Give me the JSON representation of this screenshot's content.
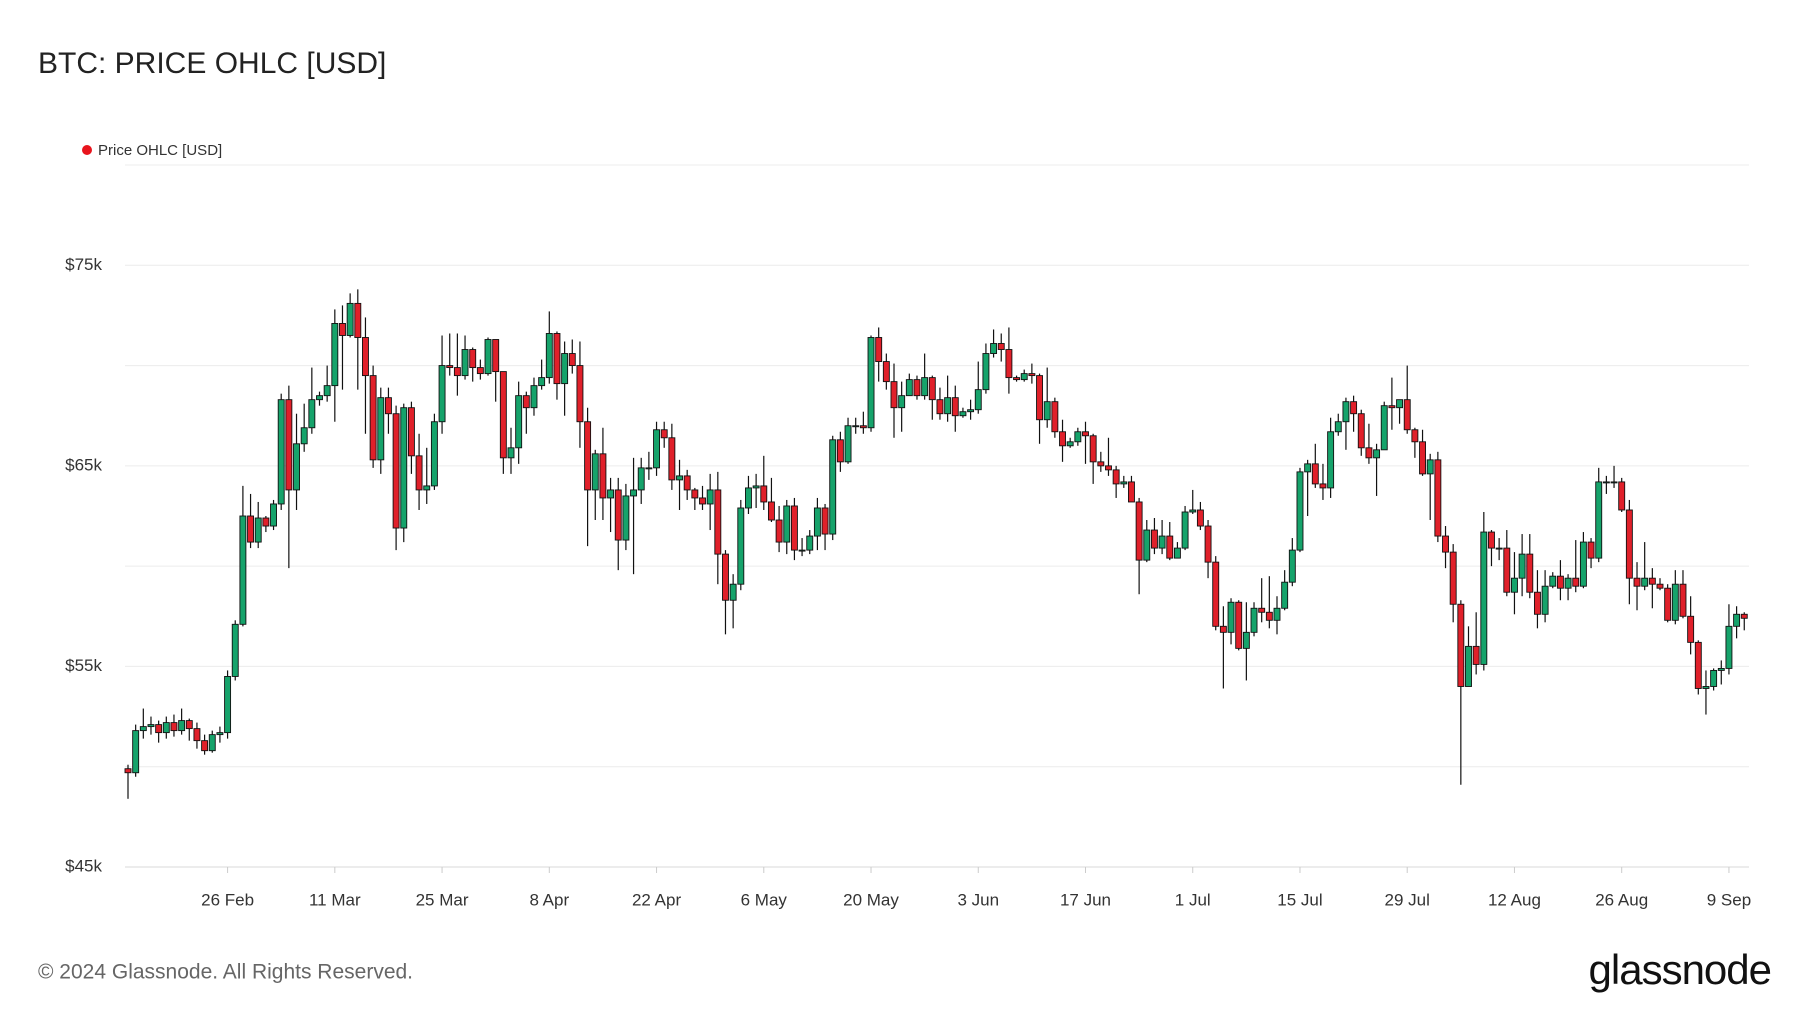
{
  "chart_data": {
    "type": "candlestick",
    "title": "BTC: PRICE OHLC [USD]",
    "x": [
      "13 Feb",
      "14 Feb",
      "15 Feb",
      "16 Feb",
      "17 Feb",
      "18 Feb",
      "19 Feb",
      "20 Feb",
      "21 Feb",
      "22 Feb",
      "23 Feb",
      "24 Feb",
      "25 Feb",
      "26 Feb",
      "27 Feb",
      "28 Feb",
      "29 Feb",
      "1 Mar",
      "2 Mar",
      "3 Mar",
      "4 Mar",
      "5 Mar",
      "6 Mar",
      "7 Mar",
      "8 Mar",
      "9 Mar",
      "10 Mar",
      "11 Mar",
      "12 Mar",
      "13 Mar",
      "14 Mar",
      "15 Mar",
      "16 Mar",
      "17 Mar",
      "18 Mar",
      "19 Mar",
      "20 Mar",
      "21 Mar",
      "22 Mar",
      "23 Mar",
      "24 Mar",
      "25 Mar",
      "26 Mar",
      "27 Mar",
      "28 Mar",
      "29 Mar",
      "30 Mar",
      "31 Mar",
      "1 Apr",
      "2 Apr",
      "3 Apr",
      "4 Apr",
      "5 Apr",
      "6 Apr",
      "7 Apr",
      "8 Apr",
      "9 Apr",
      "10 Apr",
      "11 Apr",
      "12 Apr",
      "13 Apr",
      "14 Apr",
      "15 Apr",
      "16 Apr",
      "17 Apr",
      "18 Apr",
      "19 Apr",
      "20 Apr",
      "21 Apr",
      "22 Apr",
      "23 Apr",
      "24 Apr",
      "25 Apr",
      "26 Apr",
      "27 Apr",
      "28 Apr",
      "29 Apr",
      "30 Apr",
      "1 May",
      "2 May",
      "3 May",
      "4 May",
      "5 May",
      "6 May",
      "7 May",
      "8 May",
      "9 May",
      "10 May",
      "11 May",
      "12 May",
      "13 May",
      "14 May",
      "15 May",
      "16 May",
      "17 May",
      "18 May",
      "19 May",
      "20 May",
      "21 May",
      "22 May",
      "23 May",
      "24 May",
      "25 May",
      "26 May",
      "27 May",
      "28 May",
      "29 May",
      "30 May",
      "31 May",
      "1 Jun",
      "2 Jun",
      "3 Jun",
      "4 Jun",
      "5 Jun",
      "6 Jun",
      "7 Jun",
      "8 Jun",
      "9 Jun",
      "10 Jun",
      "11 Jun",
      "12 Jun",
      "13 Jun",
      "14 Jun",
      "15 Jun",
      "16 Jun",
      "17 Jun",
      "18 Jun",
      "19 Jun",
      "20 Jun",
      "21 Jun",
      "22 Jun",
      "23 Jun",
      "24 Jun",
      "25 Jun",
      "26 Jun",
      "27 Jun",
      "28 Jun",
      "29 Jun",
      "30 Jun",
      "1 Jul",
      "2 Jul",
      "3 Jul",
      "4 Jul",
      "5 Jul",
      "6 Jul",
      "7 Jul",
      "8 Jul",
      "9 Jul",
      "10 Jul",
      "11 Jul",
      "12 Jul",
      "13 Jul",
      "14 Jul",
      "15 Jul",
      "16 Jul",
      "17 Jul",
      "18 Jul",
      "19 Jul",
      "20 Jul",
      "21 Jul",
      "22 Jul",
      "23 Jul",
      "24 Jul",
      "25 Jul",
      "26 Jul",
      "27 Jul",
      "28 Jul",
      "29 Jul",
      "30 Jul",
      "31 Jul",
      "1 Aug",
      "2 Aug",
      "3 Aug",
      "4 Aug",
      "5 Aug",
      "6 Aug",
      "7 Aug",
      "8 Aug",
      "9 Aug",
      "10 Aug",
      "11 Aug",
      "12 Aug",
      "13 Aug",
      "14 Aug",
      "15 Aug",
      "16 Aug",
      "17 Aug",
      "18 Aug",
      "19 Aug",
      "20 Aug",
      "21 Aug",
      "22 Aug",
      "23 Aug",
      "24 Aug",
      "25 Aug",
      "26 Aug",
      "27 Aug",
      "28 Aug",
      "29 Aug",
      "30 Aug",
      "31 Aug",
      "1 Sep",
      "2 Sep",
      "3 Sep",
      "4 Sep",
      "5 Sep",
      "6 Sep",
      "7 Sep",
      "8 Sep",
      "9 Sep",
      "10 Sep",
      "11 Sep"
    ],
    "series": [
      {
        "name": "Price OHLC [USD]",
        "color": "#e8141c",
        "up_color": "#16a36b",
        "down_color": "#e0202a",
        "open": [
          49900,
          49700,
          51800,
          52000,
          52100,
          51700,
          52200,
          51800,
          52300,
          51900,
          51300,
          50800,
          51600,
          51700,
          54500,
          57100,
          62500,
          61200,
          62400,
          62000,
          63100,
          68300,
          63800,
          66100,
          66900,
          68300,
          68500,
          69000,
          72100,
          71500,
          73100,
          71400,
          69500,
          65300,
          68400,
          67600,
          61900,
          67900,
          65500,
          63800,
          64000,
          67200,
          70000,
          69900,
          69500,
          70800,
          69900,
          69600,
          71300,
          69700,
          65400,
          65900,
          68500,
          67900,
          69000,
          69400,
          71600,
          69100,
          70600,
          70000,
          67200,
          63800,
          65600,
          63400,
          63800,
          61300,
          63500,
          63800,
          64900,
          64900,
          66800,
          66400,
          64300,
          64500,
          63800,
          63400,
          63100,
          63800,
          60600,
          58300,
          59100,
          62900,
          63900,
          64000,
          63200,
          62300,
          61200,
          63000,
          60800,
          60800,
          61500,
          62900,
          61600,
          66300,
          65200,
          67000,
          67000,
          66900,
          71400,
          70200,
          69200,
          67900,
          68500,
          69300,
          68500,
          69400,
          68300,
          67600,
          68400,
          67500,
          67700,
          67800,
          68800,
          70600,
          71100,
          70800,
          69400,
          69300,
          69600,
          69500,
          67300,
          68200,
          66700,
          66000,
          66200,
          66700,
          66500,
          65200,
          65000,
          64800,
          64100,
          64200,
          63200,
          60300,
          61800,
          60900,
          61500,
          60400,
          60900,
          62700,
          62800,
          62000,
          60200,
          57000,
          56700,
          58200,
          55900,
          56700,
          57900,
          57700,
          57300,
          57900,
          59200,
          60800,
          64700,
          65100,
          64100,
          63900,
          66700,
          67200,
          68200,
          67600,
          65900,
          65400,
          65800,
          68000,
          67900,
          68300,
          66800,
          66200,
          64600,
          65300,
          61500,
          60700,
          58100,
          54000,
          56000,
          55100,
          61700,
          60900,
          60900,
          58700,
          59400,
          60600,
          58700,
          57600,
          59000,
          59500,
          58900,
          59400,
          59000,
          61200,
          60400,
          64200,
          64200,
          64200,
          62800,
          59400,
          59000,
          59400,
          59100,
          58900,
          57300,
          59100,
          57500,
          56200,
          53900,
          54000,
          54800,
          54900,
          57000,
          57600
        ],
        "high": [
          50100,
          52100,
          52900,
          52500,
          52300,
          52500,
          52600,
          52900,
          52400,
          52200,
          51600,
          51800,
          52000,
          54800,
          57300,
          64000,
          63600,
          63200,
          62500,
          63300,
          68600,
          69000,
          67600,
          68100,
          69900,
          68700,
          70000,
          72800,
          73000,
          73600,
          73800,
          72400,
          70000,
          68900,
          68900,
          68000,
          68100,
          68200,
          66600,
          65900,
          67600,
          71500,
          71600,
          71600,
          71500,
          70900,
          70300,
          71400,
          71300,
          69700,
          66900,
          69200,
          68700,
          69400,
          70300,
          72700,
          71700,
          71200,
          71300,
          71200,
          67900,
          65800,
          66900,
          64400,
          64400,
          64100,
          65400,
          65400,
          65700,
          67200,
          67200,
          67100,
          65300,
          64800,
          63900,
          64000,
          64600,
          64700,
          60800,
          59600,
          63300,
          64500,
          64600,
          65500,
          64400,
          63000,
          63300,
          63400,
          61400,
          61800,
          63400,
          63100,
          66500,
          66700,
          67400,
          67400,
          67700,
          71500,
          71900,
          70600,
          70100,
          69200,
          69600,
          69500,
          70600,
          69500,
          68900,
          69500,
          69000,
          67900,
          68300,
          70200,
          71100,
          71800,
          71600,
          71900,
          69500,
          69800,
          70100,
          69600,
          69900,
          68400,
          67300,
          66400,
          66900,
          67200,
          66600,
          65700,
          66400,
          65000,
          64500,
          64500,
          63400,
          62300,
          62400,
          62300,
          62200,
          61200,
          63000,
          63800,
          63200,
          62300,
          60500,
          58000,
          58400,
          58300,
          58200,
          58200,
          59400,
          59500,
          58500,
          59800,
          61400,
          64900,
          65300,
          66100,
          65100,
          67400,
          67600,
          68400,
          68500,
          67800,
          67100,
          66100,
          68200,
          69400,
          68300,
          70000,
          66900,
          66800,
          65600,
          65700,
          62000,
          61100,
          58300,
          57000,
          57700,
          62700,
          61800,
          61400,
          61800,
          60700,
          61600,
          61600,
          59800,
          59800,
          59700,
          60300,
          59600,
          61300,
          61700,
          61400,
          64900,
          64500,
          65000,
          64400,
          63300,
          60200,
          61200,
          59900,
          59400,
          59100,
          59800,
          59800,
          58500,
          56300,
          54800,
          54900,
          55300,
          58100,
          58000,
          57700
        ],
        "low": [
          48400,
          49500,
          51400,
          51600,
          51200,
          51400,
          51500,
          51600,
          51300,
          50900,
          50600,
          50700,
          51200,
          51400,
          54300,
          57000,
          60900,
          60900,
          61700,
          61800,
          62800,
          59900,
          62800,
          65700,
          66600,
          68000,
          68200,
          67200,
          68800,
          71400,
          68800,
          66600,
          64900,
          64600,
          66600,
          60800,
          61200,
          64600,
          62800,
          63100,
          63800,
          66600,
          69500,
          68500,
          69300,
          69200,
          69300,
          69500,
          68200,
          64600,
          64600,
          65100,
          66600,
          67500,
          68800,
          69100,
          68300,
          67500,
          69600,
          65900,
          61000,
          62300,
          62300,
          61700,
          59800,
          60800,
          59600,
          63100,
          64300,
          64500,
          65900,
          63800,
          62800,
          63300,
          62800,
          62800,
          61800,
          59100,
          56600,
          56900,
          58800,
          62600,
          62900,
          62800,
          62200,
          60700,
          60600,
          60300,
          60500,
          60600,
          60800,
          60800,
          61300,
          64700,
          65100,
          66600,
          66600,
          66700,
          69200,
          68800,
          66400,
          66700,
          68500,
          68300,
          68300,
          67300,
          67300,
          67200,
          66700,
          67400,
          67300,
          67600,
          68600,
          70400,
          70200,
          68600,
          69200,
          69200,
          69100,
          66100,
          66900,
          66400,
          65200,
          65900,
          66000,
          65100,
          64100,
          64700,
          64500,
          63400,
          63900,
          63200,
          58600,
          60200,
          60600,
          60600,
          60300,
          60400,
          60800,
          62600,
          61800,
          59400,
          56800,
          53900,
          56100,
          55800,
          54300,
          56500,
          57200,
          56900,
          56600,
          57800,
          59000,
          60700,
          62500,
          63900,
          63300,
          63400,
          66500,
          65800,
          66700,
          65500,
          65100,
          63500,
          65800,
          66800,
          67100,
          66600,
          65400,
          64500,
          62300,
          61200,
          59900,
          57200,
          49100,
          54000,
          54600,
          54800,
          60000,
          60300,
          58500,
          57600,
          58500,
          58400,
          56900,
          57200,
          58900,
          58300,
          58300,
          58700,
          58900,
          59900,
          60200,
          63600,
          63900,
          62700,
          58100,
          57800,
          58800,
          57900,
          58800,
          57200,
          57100,
          57400,
          55600,
          53600,
          52600,
          53800,
          54100,
          54600,
          56400,
          56800
        ],
        "close": [
          49700,
          51800,
          52000,
          52100,
          51700,
          52200,
          51800,
          52300,
          51900,
          51300,
          50800,
          51600,
          51700,
          54500,
          57100,
          62500,
          61200,
          62400,
          62000,
          63100,
          68300,
          63800,
          66100,
          66900,
          68300,
          68500,
          69000,
          72100,
          71500,
          73100,
          71400,
          69500,
          65300,
          68400,
          67600,
          61900,
          67900,
          65500,
          63800,
          64000,
          67200,
          70000,
          69900,
          69500,
          70800,
          69900,
          69600,
          71300,
          69700,
          65400,
          65900,
          68500,
          67900,
          69000,
          69400,
          71600,
          69100,
          70600,
          70000,
          67200,
          63800,
          65600,
          63400,
          63800,
          61300,
          63500,
          63800,
          64900,
          64900,
          66800,
          66400,
          64300,
          64500,
          63800,
          63400,
          63100,
          63800,
          60600,
          58300,
          59100,
          62900,
          63900,
          64000,
          63200,
          62300,
          61200,
          63000,
          60800,
          60800,
          61500,
          62900,
          61600,
          66300,
          65200,
          67000,
          67000,
          66900,
          71400,
          70200,
          69200,
          67900,
          68500,
          69300,
          68500,
          69400,
          68300,
          67600,
          68400,
          67500,
          67700,
          67800,
          68800,
          70600,
          71100,
          70800,
          69400,
          69300,
          69600,
          69500,
          67300,
          68200,
          66700,
          66000,
          66200,
          66700,
          66500,
          65200,
          65000,
          64800,
          64100,
          64200,
          63200,
          60300,
          61800,
          60900,
          61500,
          60400,
          60900,
          62700,
          62800,
          62000,
          60200,
          57000,
          56700,
          58200,
          55900,
          56700,
          57900,
          57700,
          57300,
          57900,
          59200,
          60800,
          64700,
          65100,
          64100,
          63900,
          66700,
          67200,
          68200,
          67600,
          65900,
          65400,
          65800,
          68000,
          67900,
          68300,
          66800,
          66200,
          64600,
          65300,
          61500,
          60700,
          58100,
          54000,
          56000,
          55100,
          61700,
          60900,
          60900,
          58700,
          59400,
          60600,
          58700,
          57600,
          59000,
          59500,
          58900,
          59400,
          59000,
          61200,
          60400,
          64200,
          64200,
          64200,
          62800,
          59400,
          59000,
          59400,
          59100,
          58900,
          57300,
          59100,
          57500,
          56200,
          53900,
          54000,
          54800,
          54900,
          57000,
          57600,
          57400
        ]
      }
    ],
    "ylim": [
      45000,
      80000
    ],
    "yticks": [
      {
        "value": 45000,
        "label": "$45k"
      },
      {
        "value": 55000,
        "label": "$55k"
      },
      {
        "value": 65000,
        "label": "$65k"
      },
      {
        "value": 75000,
        "label": "$75k"
      }
    ],
    "ygrid": [
      45000,
      50000,
      55000,
      60000,
      65000,
      70000,
      75000,
      80000
    ],
    "xticks": [
      "26 Feb",
      "11 Mar",
      "25 Mar",
      "8 Apr",
      "22 Apr",
      "6 May",
      "20 May",
      "3 Jun",
      "17 Jun",
      "1 Jul",
      "15 Jul",
      "29 Jul",
      "12 Aug",
      "26 Aug",
      "9 Sep"
    ],
    "grid": true
  },
  "footer": {
    "copyright": "© 2024 Glassnode. All Rights Reserved.",
    "logo": "glassnode"
  }
}
